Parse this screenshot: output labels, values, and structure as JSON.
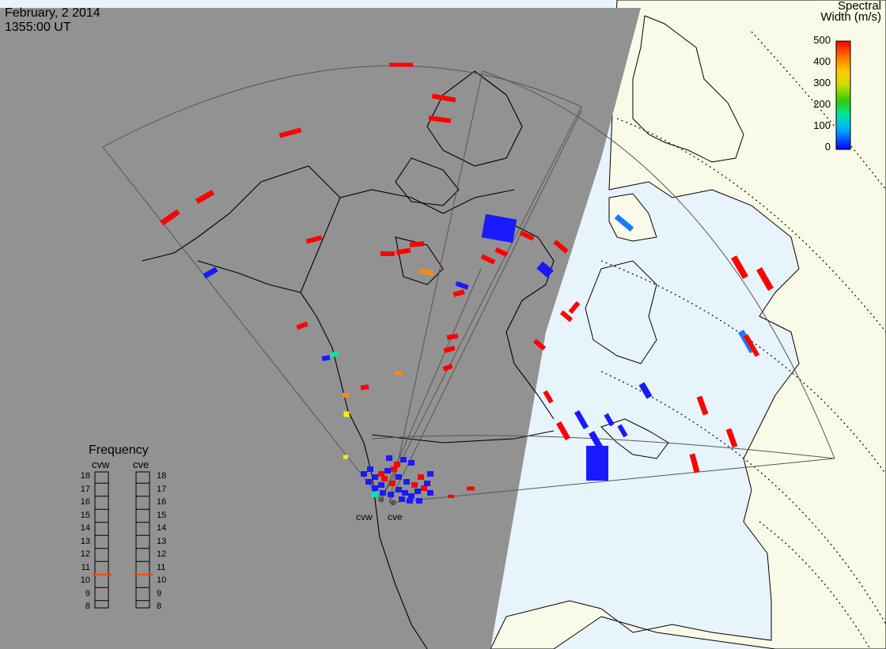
{
  "header": {
    "date": "February, 2 2014",
    "time": "1355:00 UT"
  },
  "colorbar": {
    "title_line1": "Spectral",
    "title_line2": "Width (m/s)",
    "tick_labels": [
      "500",
      "400",
      "300",
      "200",
      "100",
      "0"
    ]
  },
  "frequency_panel": {
    "title": "Frequency",
    "radars": [
      "cvw",
      "cve"
    ],
    "scale_labels": [
      "18",
      "17",
      "16",
      "15",
      "14",
      "13",
      "12",
      "11",
      "10",
      "9",
      "8"
    ],
    "cvw_frequency_mhz": 10.5,
    "cve_frequency_mhz": 10.5
  },
  "radar_labels": [
    "cvw",
    "cve"
  ],
  "colors": {
    "night_shade": "#929292",
    "land_day": "#fafae8",
    "ocean_day": "#e8f4fb",
    "scale_low": "#0000ff",
    "scale_high": "#ff0000",
    "frequency_marker": "#ff4500"
  },
  "legend_icons": [
    "colorbar",
    "frequency-bars"
  ]
}
